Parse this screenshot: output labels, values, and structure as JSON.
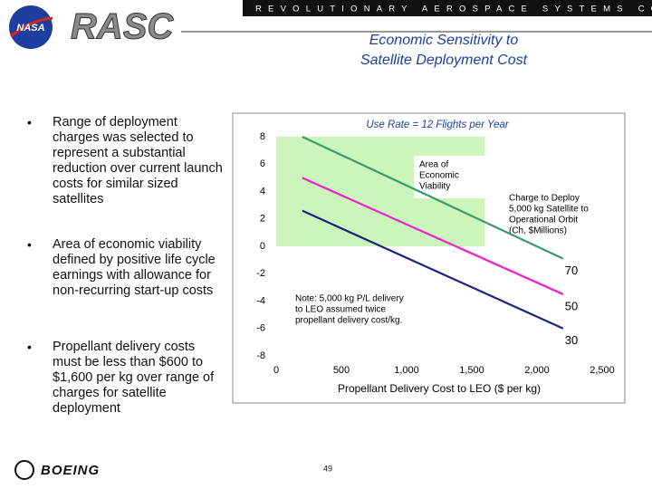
{
  "header": {
    "logo": "NASA",
    "program": "RASC",
    "banner": "REVOLUTIONARY AEROSPACE SYSTEMS CONCEPTS"
  },
  "title": [
    "Economic Sensitivity to",
    "Satellite Deployment Cost"
  ],
  "bullets": [
    "Range of deployment charges was selected to represent  a substantial reduction over current launch costs for similar sized satellites",
    "Area of economic viability defined by positive life cycle earnings with allowance for non-recurring start-up costs",
    "Propellant delivery costs must be less than $600 to $1,600 per kg over range of charges for satellite deployment"
  ],
  "chart_data": {
    "type": "line",
    "subtitle": "Use Rate = 12 Flights per Year",
    "x_label": "Propellant Delivery Cost to LEO ($ per kg)",
    "x": [
      200,
      2200
    ],
    "series": [
      {
        "name": "70",
        "color": "#3a9a6a",
        "values": [
          8,
          -0.9
        ]
      },
      {
        "name": "50",
        "color": "#ee22cc",
        "values": [
          5,
          -3.5
        ]
      },
      {
        "name": "30",
        "color": "#1a237e",
        "values": [
          2.6,
          -6
        ]
      }
    ],
    "viability_region": {
      "x": [
        0,
        1600
      ],
      "y": [
        0,
        8
      ],
      "color": "#ccf5bb"
    },
    "viability_label": [
      "Area of",
      "Economic",
      "Viability"
    ],
    "series_label": [
      "Charge to Deploy",
      "5,000 kg Satellite to",
      "Operational Orbit",
      "(Ch, $Millions)"
    ],
    "note": [
      "Note:  5,000 kg P/L delivery",
      "to LEO assumed twice",
      "propellant delivery cost/kg."
    ],
    "xlim": [
      0,
      2500
    ],
    "xticks": [
      0,
      500,
      {
        "value": 1000,
        "label": "1,000"
      },
      {
        "value": 1500,
        "label": "1,500"
      },
      {
        "value": 2000,
        "label": "2,000"
      },
      {
        "value": 2500,
        "label": "2,500"
      }
    ],
    "ylim": [
      -8,
      8
    ],
    "yticks": [
      -8,
      -6,
      -4,
      -2,
      0,
      2,
      4,
      6,
      8
    ],
    "grid": false
  },
  "footer": {
    "page": "49",
    "company": "BOEING"
  }
}
